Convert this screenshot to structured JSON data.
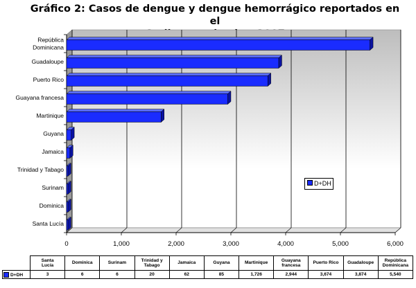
{
  "title_line1": "Gráfico 2: Casos de dengue y dengue hemorrágico reportados en el",
  "title_line2": "Caribe, septiembre 2007",
  "colors": {
    "bar": "#1a2cff",
    "bar_top": "#5a6cff",
    "bar_side": "#0a12a0",
    "wall": "#c8c8c8"
  },
  "chart_data": {
    "type": "bar",
    "orientation": "horizontal",
    "title": "Gráfico 2: Casos de dengue y dengue hemorrágico reportados en el Caribe, septiembre 2007",
    "categories": [
      "República Dominicana",
      "Guadaloupe",
      "Puerto Rico",
      "Guayana francesa",
      "Martinique",
      "Guyana",
      "Jamaica",
      "Trinidad y Tabago",
      "Surinam",
      "Dominica",
      "Santa Lucía"
    ],
    "category_labels": [
      [
        "República",
        "Dominicana"
      ],
      [
        "Guadaloupe"
      ],
      [
        "Puerto Rico"
      ],
      [
        "Guayana francesa"
      ],
      [
        "Martinique"
      ],
      [
        "Guyana"
      ],
      [
        "Jamaica"
      ],
      [
        "Trinidad y Tabago"
      ],
      [
        "Surinam"
      ],
      [
        "Dominica"
      ],
      [
        "Santa Lucía"
      ]
    ],
    "series": [
      {
        "name": "D+DH",
        "values": [
          5540,
          3874,
          3674,
          2944,
          1726,
          85,
          62,
          20,
          6,
          6,
          3
        ]
      }
    ],
    "xlim": [
      0,
      6000
    ],
    "xticks": [
      "0",
      "1,000",
      "2,000",
      "3,000",
      "4,000",
      "5,000",
      "6,000"
    ],
    "grid": true,
    "legend": "right-middle",
    "data_table": {
      "headers": [
        [
          "Santa",
          "Lucía"
        ],
        [
          "Dominica"
        ],
        [
          "Surinam"
        ],
        [
          "Trinidad y",
          "Tabago"
        ],
        [
          "Jamaica"
        ],
        [
          "Guyana"
        ],
        [
          "Martinique"
        ],
        [
          "Guayana",
          "francesa"
        ],
        [
          "Puerto Rico"
        ],
        [
          "Guadaloupe"
        ],
        [
          "República",
          "Dominicana"
        ]
      ],
      "row_label": "D+DH",
      "values": [
        "3",
        "6",
        "6",
        "20",
        "62",
        "85",
        "1,726",
        "2,944",
        "3,674",
        "3,874",
        "5,540"
      ]
    }
  }
}
